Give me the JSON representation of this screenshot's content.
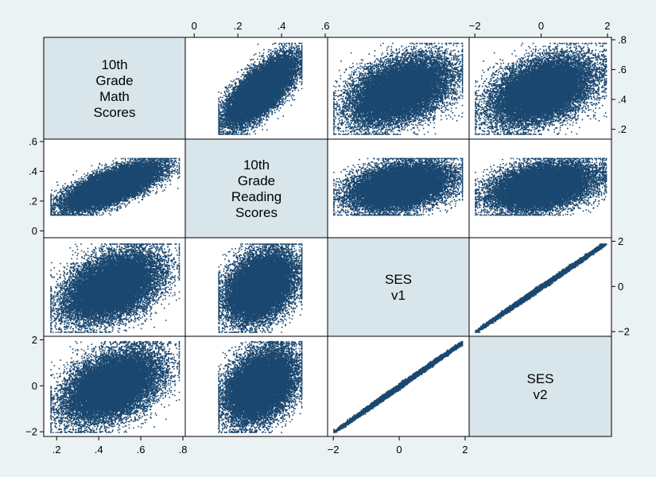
{
  "chart_data": {
    "type": "scatter",
    "subtype": "scatterplot-matrix",
    "title": "",
    "legend": "none",
    "grid": false,
    "n_points_per_panel": 18000,
    "colors": {
      "background": "#eaf2f3",
      "panel": "#ffffff",
      "diagonal_panel": "#d8e5ea",
      "marker": "#1a476f",
      "frame": "#000000"
    },
    "variables": [
      {
        "key": "math",
        "label_lines": [
          "10th",
          "Grade",
          "Math",
          "Scores"
        ],
        "range": [
          0.15,
          0.8
        ],
        "ticks": [
          0.2,
          0.4,
          0.6,
          0.8
        ],
        "tick_labels": [
          ".2",
          ".4",
          ".6",
          ".8"
        ]
      },
      {
        "key": "read",
        "label_lines": [
          "10th",
          "Grade",
          "Reading",
          "Scores"
        ],
        "range": [
          -0.03,
          0.6
        ],
        "ticks": [
          0,
          0.2,
          0.4,
          0.6
        ],
        "tick_labels": [
          "0",
          ".2",
          ".4",
          ".6"
        ]
      },
      {
        "key": "ses1",
        "label_lines": [
          "SES",
          "v1"
        ],
        "range": [
          -2.1,
          2.05
        ],
        "ticks": [
          -2,
          0,
          2
        ],
        "tick_labels": [
          "−2",
          "0",
          "2"
        ]
      },
      {
        "key": "ses2",
        "label_lines": [
          "SES",
          "v2"
        ],
        "range": [
          -2.1,
          2.05
        ],
        "ticks": [
          -2,
          0,
          2
        ],
        "tick_labels": [
          "−2",
          "0",
          "2"
        ]
      }
    ],
    "variable_bounds": {
      "math": [
        0.17,
        0.78
      ],
      "read": [
        0.11,
        0.49
      ],
      "ses1": [
        -2.0,
        1.9
      ],
      "ses2": [
        -2.0,
        1.95
      ]
    },
    "axis_placement": [
      {
        "axis": "x",
        "variable": "read",
        "side": "top"
      },
      {
        "axis": "x",
        "variable": "ses2",
        "side": "top"
      },
      {
        "axis": "x",
        "variable": "math",
        "side": "bottom"
      },
      {
        "axis": "x",
        "variable": "ses1",
        "side": "bottom"
      },
      {
        "axis": "y",
        "variable": "math",
        "side": "right"
      },
      {
        "axis": "y",
        "variable": "ses1",
        "side": "right"
      },
      {
        "axis": "y",
        "variable": "read",
        "side": "left"
      },
      {
        "axis": "y",
        "variable": "ses2",
        "side": "left"
      }
    ],
    "relationships": {
      "math_read_correlation": 0.7,
      "ses1_ses2_correlation": 0.99,
      "ses_math_correlation": 0.4,
      "ses_read_correlation": 0.35
    }
  }
}
